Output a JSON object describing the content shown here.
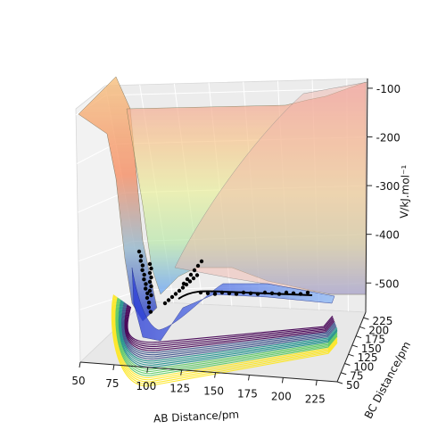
{
  "chart_data": {
    "type": "surface",
    "title": "",
    "xlabel": "AB Distance/pm",
    "ylabel": "BC Distance/pm",
    "zlabel": "V/kJ.mol⁻¹",
    "x_ticks": [
      50,
      75,
      100,
      125,
      150,
      175,
      200,
      225
    ],
    "y_ticks": [
      50,
      75,
      100,
      125,
      150,
      175,
      200,
      225
    ],
    "z_ticks": [
      -100,
      -200,
      -300,
      -400,
      -500
    ],
    "xlim": [
      50,
      240
    ],
    "ylim": [
      50,
      240
    ],
    "zlim": [
      -560,
      -80
    ],
    "grid": true,
    "surface_levels": [
      {
        "value": -100,
        "color": "#f0a0a0"
      },
      {
        "value": -200,
        "color": "#f7c58a"
      },
      {
        "value": -300,
        "color": "#e9ef9a"
      },
      {
        "value": -400,
        "color": "#b5e6a8"
      },
      {
        "value": -500,
        "color": "#6aa6f5"
      }
    ],
    "contour_colormap": [
      "#440154",
      "#3b528b",
      "#21918c",
      "#5ec962",
      "#fde725"
    ],
    "trajectory": {
      "color": "#000000",
      "description_points": 60
    }
  }
}
